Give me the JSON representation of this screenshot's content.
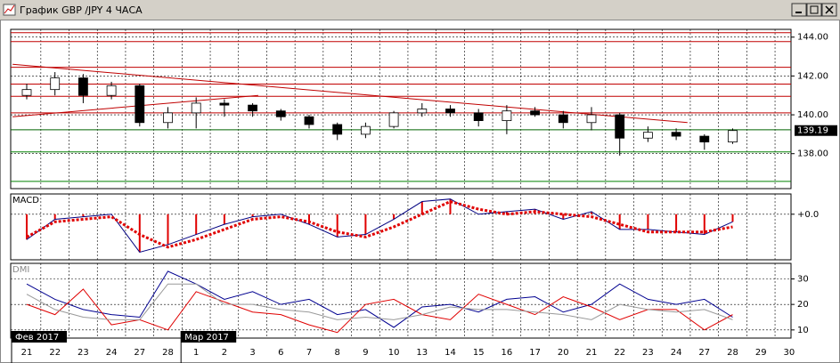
{
  "window": {
    "title": "График GBP /JPY  4 ЧАСА"
  },
  "chart_data": [
    {
      "type": "candlestick",
      "categories": [
        "21",
        "22",
        "23",
        "24",
        "27",
        "28",
        "1",
        "2",
        "3",
        "6",
        "7",
        "8",
        "9",
        "10",
        "13",
        "14",
        "15",
        "16",
        "17",
        "20",
        "21",
        "22",
        "23",
        "24",
        "27",
        "28",
        "29",
        "30"
      ],
      "months": [
        {
          "index": 0,
          "label": "Фев 2017"
        },
        {
          "index": 6,
          "label": "Мар 2017"
        }
      ],
      "open": [
        141.0,
        141.3,
        141.9,
        141.0,
        141.5,
        139.6,
        140.1,
        140.6,
        140.5,
        140.2,
        139.9,
        139.5,
        139.0,
        139.4,
        140.1,
        140.3,
        140.1,
        139.7,
        140.2,
        140.0,
        139.6,
        140.0,
        138.8,
        139.1,
        138.9,
        138.6,
        null,
        null
      ],
      "high": [
        141.6,
        142.2,
        142.1,
        141.7,
        141.6,
        140.4,
        140.9,
        140.8,
        140.6,
        140.3,
        140.0,
        139.6,
        139.6,
        140.2,
        140.6,
        140.5,
        140.3,
        140.5,
        140.4,
        140.2,
        140.4,
        140.1,
        139.4,
        139.3,
        139.0,
        139.3,
        null,
        null
      ],
      "low": [
        140.8,
        141.0,
        140.6,
        140.8,
        139.4,
        139.3,
        139.3,
        139.9,
        139.9,
        139.7,
        139.3,
        138.7,
        138.8,
        139.3,
        139.9,
        139.9,
        139.4,
        139.0,
        139.9,
        139.3,
        139.2,
        137.9,
        138.6,
        138.7,
        138.2,
        138.5,
        null,
        null
      ],
      "close": [
        141.3,
        141.9,
        141.0,
        141.5,
        139.6,
        140.1,
        140.6,
        140.5,
        140.2,
        139.9,
        139.5,
        139.0,
        139.4,
        140.1,
        140.3,
        140.1,
        139.7,
        140.2,
        140.0,
        139.6,
        140.0,
        138.8,
        139.1,
        138.9,
        138.6,
        139.19,
        null,
        null
      ],
      "last_price": 139.19,
      "ylim": [
        136.2,
        144.4
      ],
      "yticks": [
        {
          "value": 144,
          "label": "144.00"
        },
        {
          "value": 142,
          "label": "142.00"
        },
        {
          "value": 140,
          "label": "140.00"
        },
        {
          "value": 138,
          "label": "138.00"
        }
      ],
      "levels": [
        {
          "value": 144.23,
          "color": "#c00000"
        },
        {
          "value": 143.77,
          "color": "#c00000"
        },
        {
          "value": 142.45,
          "color": "#c00000"
        },
        {
          "value": 141.58,
          "color": "#c00000"
        },
        {
          "value": 140.95,
          "color": "#c00000"
        },
        {
          "value": 140.1,
          "color": "#c00000"
        },
        {
          "value": 139.23,
          "color": "#006400"
        },
        {
          "value": 138.09,
          "color": "#008000"
        },
        {
          "value": 136.57,
          "color": "#008000"
        }
      ],
      "trendlines": [
        {
          "x": [
            -0.5,
            23.4
          ],
          "y": [
            142.6,
            139.6
          ],
          "color": "#c00000"
        },
        {
          "x": [
            -0.5,
            8.2
          ],
          "y": [
            139.9,
            141.0
          ],
          "color": "#c00000"
        }
      ]
    },
    {
      "type": "macd",
      "title": "MACD",
      "ylim": [
        -0.9,
        0.4
      ],
      "yticks": [
        {
          "value": 0,
          "label": "+0.0"
        }
      ],
      "histogram": {
        "color": "#e00000",
        "values": [
          -0.5,
          -0.1,
          -0.05,
          0.0,
          -0.75,
          -0.6,
          -0.4,
          -0.2,
          -0.05,
          0.0,
          -0.2,
          -0.45,
          -0.4,
          -0.1,
          0.25,
          0.3,
          0.0,
          0.05,
          0.1,
          -0.1,
          0.05,
          -0.3,
          -0.3,
          -0.35,
          -0.4,
          -0.15,
          null,
          null
        ]
      },
      "series": [
        {
          "color": "#000080",
          "style": "solid",
          "values": [
            -0.5,
            -0.1,
            -0.05,
            0.0,
            -0.75,
            -0.6,
            -0.4,
            -0.2,
            -0.05,
            0.0,
            -0.2,
            -0.45,
            -0.4,
            -0.1,
            0.25,
            0.3,
            0.0,
            0.05,
            0.1,
            -0.1,
            0.05,
            -0.3,
            -0.3,
            -0.35,
            -0.4,
            -0.15,
            null,
            null
          ]
        },
        {
          "color": "#e00000",
          "style": "dotted",
          "values": [
            -0.45,
            -0.15,
            -0.1,
            -0.05,
            -0.4,
            -0.65,
            -0.5,
            -0.3,
            -0.1,
            -0.05,
            -0.15,
            -0.35,
            -0.45,
            -0.25,
            0.0,
            0.25,
            0.1,
            0.0,
            0.05,
            0.0,
            -0.05,
            -0.2,
            -0.35,
            -0.35,
            -0.35,
            -0.25,
            null,
            null
          ]
        }
      ]
    },
    {
      "type": "line",
      "title": "DMI",
      "ylim": [
        6.8,
        36.1
      ],
      "yticks": [
        30,
        20,
        10
      ],
      "series": [
        {
          "color": "#000090",
          "values": [
            28,
            22,
            18,
            16,
            15,
            33,
            28,
            22,
            25,
            20,
            22,
            16,
            18,
            11,
            19,
            20,
            17,
            22,
            23,
            17,
            20,
            28,
            22,
            20,
            22,
            15,
            null,
            null
          ]
        },
        {
          "color": "#e00000",
          "values": [
            20,
            16,
            26,
            12,
            14,
            10,
            25,
            21,
            17,
            16,
            12,
            9,
            20,
            22,
            16,
            14,
            24,
            20,
            16,
            23,
            19,
            14,
            18,
            18,
            10,
            16,
            null,
            null
          ]
        },
        {
          "color": "#999999",
          "values": [
            24,
            18,
            15,
            14,
            14,
            28,
            28,
            20,
            20,
            18,
            17,
            14,
            15,
            14,
            16,
            19,
            18,
            18,
            17,
            16,
            14,
            20,
            18,
            17,
            18,
            14,
            null,
            null
          ]
        }
      ]
    }
  ]
}
